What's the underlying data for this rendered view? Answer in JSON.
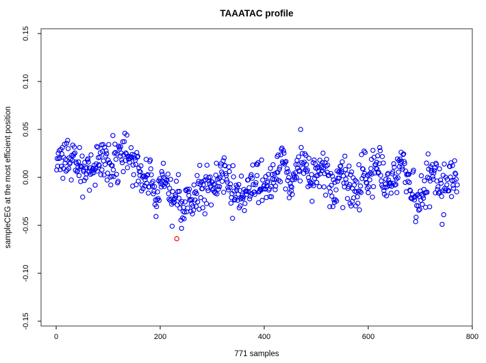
{
  "figure": {
    "background": "#ffffff"
  },
  "chart_data": {
    "type": "scatter",
    "title": "TAAATAC profile",
    "xlabel": "771 samples",
    "ylabel": "sampleCEG at the most efficient position",
    "n_samples": 771,
    "xlim": [
      -29,
      800
    ],
    "ylim": [
      -0.155,
      0.155
    ],
    "x_tick_values": [
      0,
      200,
      400,
      600,
      800
    ],
    "x_tick_labels": [
      "0",
      "200",
      "400",
      "600",
      "800"
    ],
    "y_tick_values": [
      -0.15,
      -0.1,
      -0.05,
      0.0,
      0.05,
      0.1,
      0.15
    ],
    "y_tick_labels": [
      "-0.15",
      "-0.10",
      "-0.05",
      "0.00",
      "0.05",
      "0.10",
      "0.15"
    ],
    "grid": false,
    "legend": false,
    "point_color": "#0000ee",
    "outlier_color": "#ff0000",
    "axis_color": "#000000",
    "border_color": "#333333",
    "marker": "open-circle",
    "outlier": {
      "x": 232,
      "y": -0.064
    },
    "y_clamp": [
      -0.056,
      0.05
    ],
    "noise_sd": 0.011,
    "trend": [
      [
        1,
        0.014
      ],
      [
        25,
        0.017
      ],
      [
        50,
        0.01
      ],
      [
        75,
        0.013
      ],
      [
        100,
        0.016
      ],
      [
        120,
        0.021
      ],
      [
        140,
        0.022
      ],
      [
        158,
        0.012
      ],
      [
        170,
        -0.002
      ],
      [
        180,
        0.012
      ],
      [
        192,
        -0.025
      ],
      [
        203,
        -0.008
      ],
      [
        213,
        0.002
      ],
      [
        222,
        -0.038
      ],
      [
        232,
        -0.008
      ],
      [
        243,
        -0.045
      ],
      [
        252,
        -0.018
      ],
      [
        263,
        -0.024
      ],
      [
        278,
        -0.008
      ],
      [
        292,
        -0.016
      ],
      [
        308,
        -0.004
      ],
      [
        326,
        0.004
      ],
      [
        342,
        -0.016
      ],
      [
        358,
        -0.024
      ],
      [
        372,
        -0.008
      ],
      [
        388,
        -0.002
      ],
      [
        404,
        -0.012
      ],
      [
        420,
        0.006
      ],
      [
        436,
        0.014
      ],
      [
        452,
        -0.006
      ],
      [
        466,
        0.02
      ],
      [
        480,
        0.016
      ],
      [
        492,
        -0.012
      ],
      [
        506,
        0.012
      ],
      [
        520,
        -0.002
      ],
      [
        534,
        -0.022
      ],
      [
        548,
        0.006
      ],
      [
        562,
        -0.012
      ],
      [
        576,
        -0.016
      ],
      [
        590,
        0.01
      ],
      [
        604,
        -0.008
      ],
      [
        620,
        0.014
      ],
      [
        636,
        -0.014
      ],
      [
        650,
        0.002
      ],
      [
        666,
        0.012
      ],
      [
        682,
        -0.016
      ],
      [
        698,
        -0.02
      ],
      [
        712,
        -0.006
      ],
      [
        726,
        0.006
      ],
      [
        742,
        -0.014
      ],
      [
        758,
        0.002
      ],
      [
        771,
        -0.004
      ]
    ]
  }
}
